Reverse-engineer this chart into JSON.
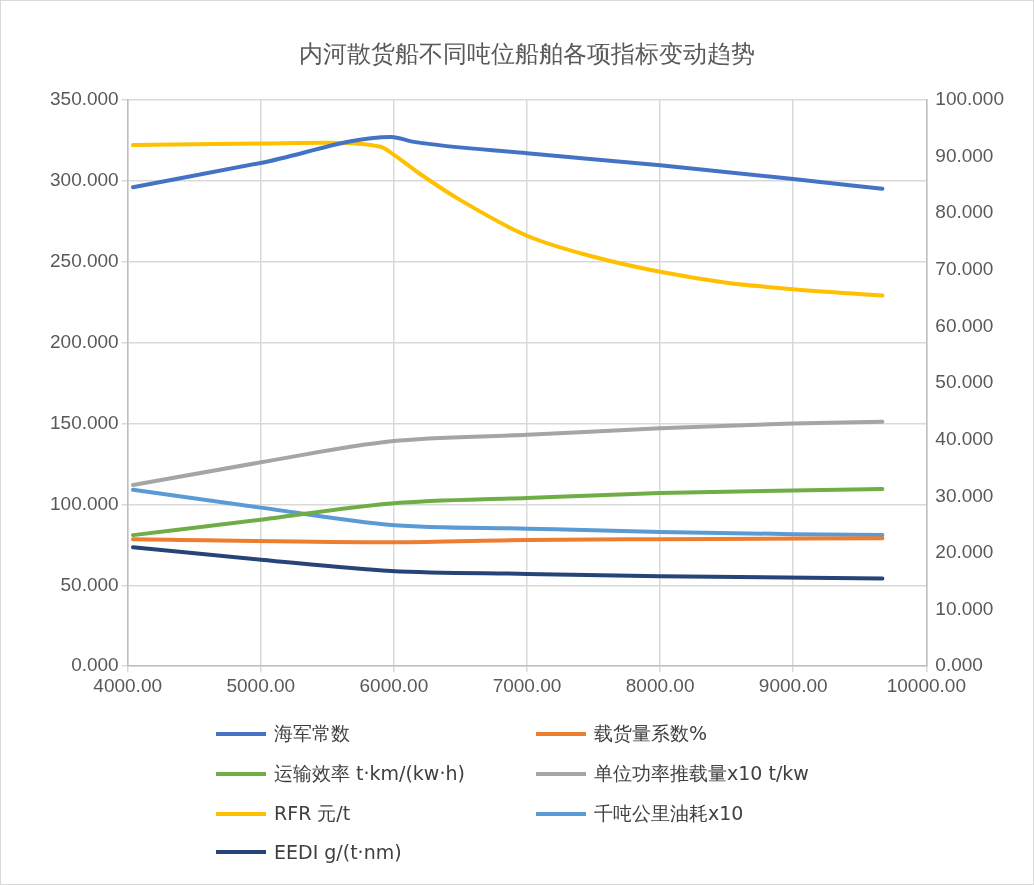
{
  "chart_data": {
    "type": "line",
    "title": "内河散货船不同吨位船舶各项指标变动趋势",
    "xlim": [
      4000,
      10000
    ],
    "xticks": [
      {
        "value": 4000,
        "label": "4000.00"
      },
      {
        "value": 5000,
        "label": "5000.00"
      },
      {
        "value": 6000,
        "label": "6000.00"
      },
      {
        "value": 7000,
        "label": "7000.00"
      },
      {
        "value": 8000,
        "label": "8000.00"
      },
      {
        "value": 9000,
        "label": "9000.00"
      },
      {
        "value": 10000,
        "label": "10000.00"
      }
    ],
    "ylim": [
      0,
      350
    ],
    "yticks": [
      {
        "value": 0,
        "label": "0.000"
      },
      {
        "value": 50,
        "label": "50.000"
      },
      {
        "value": 100,
        "label": "100.000"
      },
      {
        "value": 150,
        "label": "150.000"
      },
      {
        "value": 200,
        "label": "200.000"
      },
      {
        "value": 250,
        "label": "250.000"
      },
      {
        "value": 300,
        "label": "300.000"
      },
      {
        "value": 350,
        "label": "350.000"
      }
    ],
    "y2lim": [
      0,
      100
    ],
    "y2ticks": [
      {
        "value": 0,
        "label": "0.000"
      },
      {
        "value": 10,
        "label": "10.000"
      },
      {
        "value": 20,
        "label": "20.000"
      },
      {
        "value": 30,
        "label": "30.000"
      },
      {
        "value": 40,
        "label": "40.000"
      },
      {
        "value": 50,
        "label": "50.000"
      },
      {
        "value": 60,
        "label": "60.000"
      },
      {
        "value": 70,
        "label": "70.000"
      },
      {
        "value": 80,
        "label": "80.000"
      },
      {
        "value": 90,
        "label": "90.000"
      },
      {
        "value": 100,
        "label": "100.000"
      }
    ],
    "grid": true,
    "legend": "bottom",
    "marker": "none",
    "line_style": "solid",
    "series": [
      {
        "name": "海军常数",
        "color": "#4472c4",
        "x": [
          4040,
          5000,
          5980,
          6150,
          7000,
          8000,
          9000,
          9670
        ],
        "values": [
          296,
          311,
          327,
          324,
          317,
          309.5,
          301,
          295
        ]
      },
      {
        "name": "载货量系数%",
        "color": "#ed7d31",
        "x": [
          4040,
          5980,
          7000,
          8000,
          9670
        ],
        "values": [
          78.5,
          76.6,
          78,
          78.5,
          79
        ]
      },
      {
        "name": "运输效率 t·km/(kw·h)",
        "color": "#70ad47",
        "x": [
          4040,
          5000,
          5980,
          7000,
          8000,
          9670
        ],
        "values": [
          81,
          90.5,
          100.6,
          104,
          107,
          109.5
        ]
      },
      {
        "name": "单位功率推载量x10 t/kw",
        "color": "#a5a5a5",
        "x": [
          4040,
          5000,
          5980,
          7000,
          8000,
          9000,
          9670
        ],
        "values": [
          112,
          126,
          139,
          143,
          147,
          150,
          151
        ]
      },
      {
        "name": "RFR 元/t",
        "color": "#ffc000",
        "x": [
          4040,
          5000,
          5500,
          5900,
          6000,
          6200,
          6500,
          7000,
          7500,
          8000,
          8500,
          9000,
          9670
        ],
        "values": [
          322,
          323,
          323.5,
          321,
          316,
          304,
          288,
          266,
          253,
          243.7,
          237,
          233,
          229
        ]
      },
      {
        "name": "千吨公里油耗x10",
        "color": "#5b9bd5",
        "x": [
          4040,
          5000,
          5980,
          7000,
          8000,
          9000,
          9670
        ],
        "values": [
          109,
          98,
          87.3,
          85,
          83,
          81.6,
          81
        ]
      },
      {
        "name": "EEDI g/(t·nm)",
        "color": "#264478",
        "axis": "y2",
        "x": [
          4040,
          5000,
          5980,
          7000,
          8000,
          9670
        ],
        "values": [
          21,
          18.8,
          16.8,
          16.3,
          15.9,
          15.5
        ]
      }
    ]
  }
}
